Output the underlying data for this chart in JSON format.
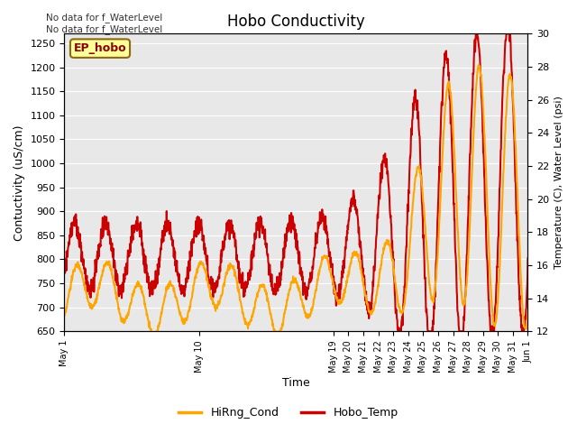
{
  "title": "Hobo Conductivity",
  "xlabel": "Time",
  "ylabel_left": "Contuctivity (uS/cm)",
  "ylabel_right": "Temperature (C), Water Level (psi)",
  "annotation_text": "No data for f_WaterLevel\nNo data for f_WaterLevel",
  "ep_hobo_label": "EP_hobo",
  "legend_entries": [
    "HiRng_Cond",
    "Hobo_Temp"
  ],
  "legend_colors": [
    "#FFA500",
    "#CC0000"
  ],
  "ylim_left": [
    650,
    1270
  ],
  "ylim_right": [
    12,
    30
  ],
  "bg_color": "#E8E8E8",
  "fig_color": "#FFFFFF",
  "yticks_left": [
    650,
    700,
    750,
    800,
    850,
    900,
    950,
    1000,
    1050,
    1100,
    1150,
    1200,
    1250
  ],
  "yticks_right": [
    12,
    14,
    16,
    18,
    20,
    22,
    24,
    26,
    28,
    30
  ],
  "cond_color": "#FFA500",
  "temp_color": "#CC0000",
  "grid_color": "#FFFFFF",
  "line_width": 1.5,
  "n_days": 31,
  "pts_per_day": 48
}
